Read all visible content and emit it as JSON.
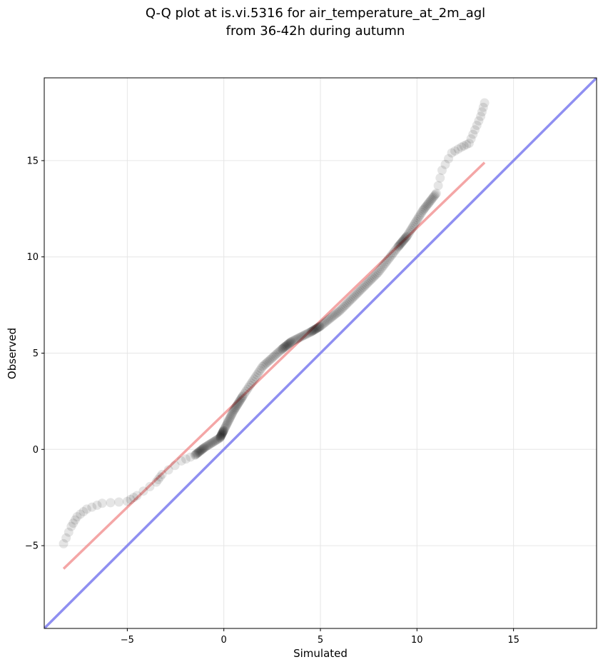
{
  "chart_data": {
    "type": "scatter",
    "title_lines": [
      "Q-Q plot at is.vi.5316 for air_temperature_at_2m_agl",
      "from 36-42h during autumn"
    ],
    "xlabel": "Simulated",
    "ylabel": "Observed",
    "xlim": [
      -9.3,
      19.3
    ],
    "ylim": [
      -9.3,
      19.3
    ],
    "xticks": [
      -5,
      0,
      5,
      10,
      15
    ],
    "yticks": [
      -5,
      0,
      5,
      10,
      15
    ],
    "grid": true,
    "colors": {
      "points": "#000000",
      "fit_line": "#f08080",
      "identity_line": "#7b7bef"
    },
    "fit_line": {
      "x": [
        -8.3,
        13.5
      ],
      "y": [
        -6.2,
        14.9
      ]
    },
    "identity_line": {
      "x": [
        -9.3,
        19.3
      ],
      "y": [
        -9.3,
        19.3
      ]
    },
    "quantile_anchors": {
      "x": [
        -8.3,
        -7.9,
        -7.6,
        -7.1,
        -6.3,
        -5.0,
        -4.5,
        -3.5,
        -3.2,
        -2.2,
        -1.5,
        -1.0,
        -0.2,
        0.0,
        0.5,
        1.0,
        2.0,
        3.0,
        3.5,
        4.5,
        5.0,
        6.0,
        7.0,
        8.0,
        9.0,
        9.5,
        10.3,
        11.0,
        11.3,
        11.8,
        12.3,
        12.7,
        13.0,
        13.3,
        13.5
      ],
      "y": [
        -4.9,
        -4.0,
        -3.5,
        -3.1,
        -2.8,
        -2.7,
        -2.4,
        -1.7,
        -1.3,
        -0.6,
        -0.3,
        0.1,
        0.6,
        1.0,
        2.0,
        2.8,
        4.3,
        5.2,
        5.6,
        6.1,
        6.4,
        7.2,
        8.2,
        9.2,
        10.5,
        11.1,
        12.4,
        13.3,
        14.5,
        15.4,
        15.7,
        15.9,
        16.6,
        17.3,
        18.0
      ]
    }
  }
}
